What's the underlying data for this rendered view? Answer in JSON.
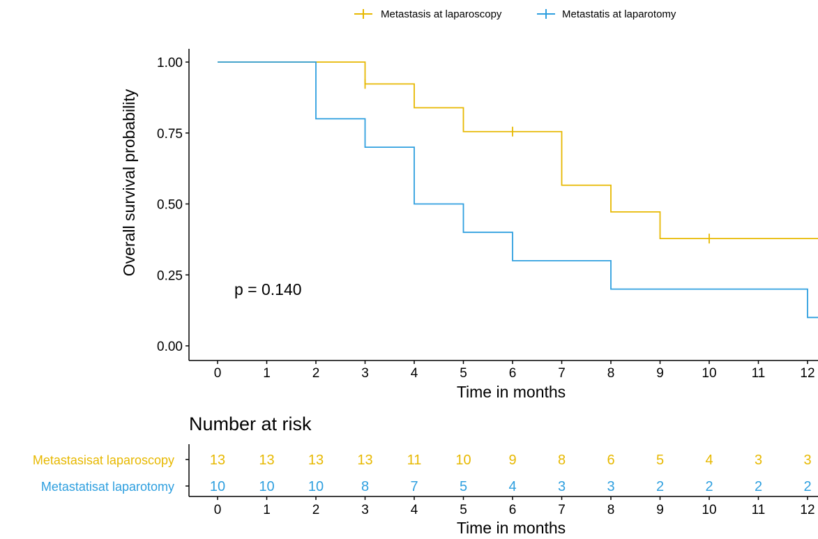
{
  "chart_data": {
    "type": "line",
    "subtype": "kaplan-meier",
    "xlabel": "Time in months",
    "ylabel": "Overall survival probability",
    "x_ticks": [
      0,
      1,
      2,
      3,
      4,
      5,
      6,
      7,
      8,
      9,
      10,
      11,
      12
    ],
    "y_ticks": [
      "0.00",
      "0.25",
      "0.50",
      "0.75",
      "1.00"
    ],
    "xlim": [
      0,
      12.5
    ],
    "ylim": [
      0,
      1
    ],
    "annotation": "p = 0.140",
    "legend_position": "top",
    "series": [
      {
        "name": "Metastasis at laparoscopy",
        "color": "#E7B800",
        "steps": [
          [
            0,
            1.0
          ],
          [
            3,
            0.923
          ],
          [
            4,
            0.839
          ],
          [
            5,
            0.755
          ],
          [
            7,
            0.566
          ],
          [
            8,
            0.472
          ],
          [
            9,
            0.378
          ],
          [
            12.5,
            0.378
          ]
        ],
        "censor": [
          [
            3,
            0.923
          ],
          [
            6,
            0.755
          ],
          [
            10,
            0.378
          ]
        ]
      },
      {
        "name": "Metastatis at laparotomy",
        "color": "#2E9FDF",
        "steps": [
          [
            0,
            1.0
          ],
          [
            2,
            0.8
          ],
          [
            3,
            0.7
          ],
          [
            4,
            0.5
          ],
          [
            5,
            0.4
          ],
          [
            6,
            0.3
          ],
          [
            8,
            0.2
          ],
          [
            12,
            0.1
          ],
          [
            12.5,
            0.1
          ]
        ],
        "censor": []
      }
    ],
    "risk_table": {
      "title": "Number at risk",
      "xlabel": "Time in months",
      "rows": [
        {
          "label": "Metastasisat laparoscopy",
          "color": "#E7B800",
          "values": [
            "13",
            "13",
            "13",
            "13",
            "11",
            "10",
            "9",
            "8",
            "6",
            "5",
            "4",
            "3",
            "3"
          ]
        },
        {
          "label": "Metastatisat laparotomy",
          "color": "#2E9FDF",
          "values": [
            "10",
            "10",
            "10",
            "8",
            "7",
            "5",
            "4",
            "3",
            "3",
            "2",
            "2",
            "2",
            "2"
          ]
        }
      ]
    }
  }
}
